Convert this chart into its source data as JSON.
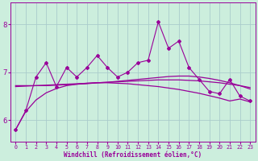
{
  "xlabel": "Windchill (Refroidissement éolien,°C)",
  "bg_color": "#cceedd",
  "line_color": "#990099",
  "grid_color": "#aacccc",
  "x_ticks": [
    0,
    1,
    2,
    3,
    4,
    5,
    6,
    7,
    8,
    9,
    10,
    11,
    12,
    13,
    14,
    15,
    16,
    17,
    18,
    19,
    20,
    21,
    22,
    23
  ],
  "y_ticks": [
    6,
    7,
    8
  ],
  "ylim": [
    5.55,
    8.45
  ],
  "xlim": [
    -0.5,
    23.5
  ],
  "jagged_y": [
    5.8,
    6.2,
    6.9,
    7.2,
    6.7,
    7.1,
    6.9,
    7.1,
    7.35,
    7.1,
    6.9,
    7.0,
    7.2,
    7.25,
    8.05,
    7.5,
    7.65,
    7.1,
    6.85,
    6.6,
    6.55,
    6.85,
    6.5,
    6.4
  ],
  "line1_y": [
    6.72,
    6.72,
    6.72,
    6.72,
    6.73,
    6.74,
    6.75,
    6.76,
    6.78,
    6.79,
    6.81,
    6.83,
    6.85,
    6.87,
    6.89,
    6.91,
    6.92,
    6.92,
    6.9,
    6.87,
    6.83,
    6.78,
    6.72,
    6.65
  ],
  "line2_y": [
    6.7,
    6.71,
    6.72,
    6.73,
    6.74,
    6.75,
    6.76,
    6.77,
    6.78,
    6.79,
    6.8,
    6.81,
    6.82,
    6.83,
    6.84,
    6.84,
    6.84,
    6.83,
    6.82,
    6.8,
    6.78,
    6.75,
    6.72,
    6.68
  ],
  "curve_y": [
    5.8,
    6.18,
    6.42,
    6.57,
    6.66,
    6.72,
    6.75,
    6.77,
    6.78,
    6.78,
    6.77,
    6.76,
    6.74,
    6.72,
    6.7,
    6.67,
    6.64,
    6.6,
    6.56,
    6.51,
    6.46,
    6.4,
    6.44,
    6.38
  ]
}
